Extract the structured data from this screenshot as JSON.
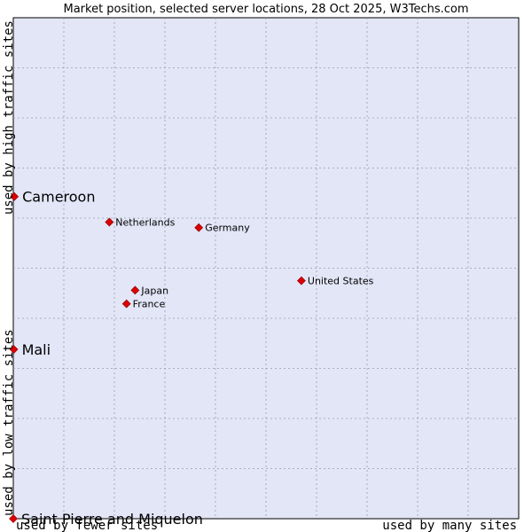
{
  "chart_data": {
    "type": "scatter",
    "title": "Market position, selected server locations, 28 Oct 2025, W3Techs.com",
    "x_axis": {
      "low_label": "used by fewer sites",
      "high_label": "used by many sites"
    },
    "y_axis": {
      "low_label": "used by low traffic sites",
      "high_label": "used by high traffic sites"
    },
    "xlim": [
      0,
      100
    ],
    "ylim": [
      0,
      100
    ],
    "grid": true,
    "colors": {
      "background": "#e3e6f7",
      "point": "#dd0000",
      "grid": "#9a9aaa"
    },
    "points": [
      {
        "name": "Cameroon",
        "x": 0.2,
        "y": 64.3,
        "emphasis": true
      },
      {
        "name": "Netherlands",
        "x": 19.0,
        "y": 59.2,
        "emphasis": false
      },
      {
        "name": "Germany",
        "x": 36.7,
        "y": 58.1,
        "emphasis": false
      },
      {
        "name": "United States",
        "x": 57.0,
        "y": 47.5,
        "emphasis": false
      },
      {
        "name": "Japan",
        "x": 24.1,
        "y": 45.6,
        "emphasis": false
      },
      {
        "name": "France",
        "x": 22.4,
        "y": 42.9,
        "emphasis": false
      },
      {
        "name": "Mali",
        "x": 0.1,
        "y": 33.8,
        "emphasis": true
      },
      {
        "name": "Saint Pierre and Miquelon",
        "x": 0.0,
        "y": 0.0,
        "emphasis": true
      }
    ]
  }
}
